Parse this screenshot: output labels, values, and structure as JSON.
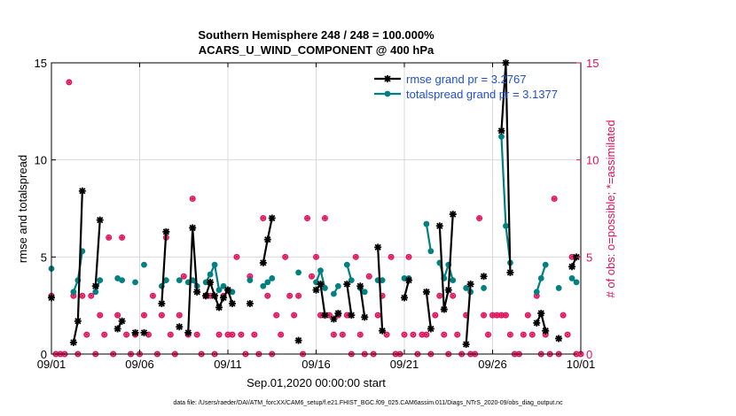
{
  "title_line1": "Southern Hemisphere 248 / 248 = 100.000%",
  "title_line2": "ACARS_U_WIND_COMPONENT @ 400 hPa",
  "footer": "data file: /Users/raeder/DAI/ATM_forcXX/CAM6_setup/f.e21.FHIST_BGC.f09_025.CAM6assim.011/Diags_NTrS_2020-09/obs_diag_output.nc",
  "colors": {
    "rmse": "#000000",
    "spread": "#008080",
    "obs": "#e0105a",
    "legend_text": "#1f4fd1"
  },
  "chart_data": {
    "type": "line",
    "xlabel": "Sep.01,2020 00:00:00 start",
    "ylabel": "rmse and totalspread",
    "ylabel_right": "# of obs: o=possible; *=assimilated",
    "x_unit": "days since Sep.01,2020",
    "xlim": [
      0,
      30
    ],
    "ylim": [
      0,
      15
    ],
    "ylim_right": [
      0,
      15
    ],
    "xticks": [
      {
        "value": 0,
        "label": "09/01"
      },
      {
        "value": 5,
        "label": "09/06"
      },
      {
        "value": 10,
        "label": "09/11"
      },
      {
        "value": 15,
        "label": "09/16"
      },
      {
        "value": 20,
        "label": "09/21"
      },
      {
        "value": 25,
        "label": "09/26"
      },
      {
        "value": 30,
        "label": "10/01"
      }
    ],
    "yticks": [
      0,
      5,
      10,
      15
    ],
    "yticks_right": [
      0,
      5,
      10,
      15
    ],
    "grid": true,
    "legend_position": "top-right",
    "series": [
      {
        "name": "rmse grand pr = 3.2767",
        "marker": "asterisk",
        "x": [
          0.0,
          0.25,
          null,
          1.25,
          1.5,
          1.75,
          null,
          2.5,
          2.75,
          null,
          3.75,
          4.0,
          null,
          4.75,
          null,
          5.25,
          null,
          6.25,
          6.5,
          null,
          7.25,
          null,
          7.75,
          8.0,
          8.25,
          null,
          8.75,
          9.0,
          9.25,
          9.5,
          9.75,
          10.0,
          10.25,
          null,
          11.25,
          null,
          12.0,
          12.25,
          12.5,
          12.75,
          null,
          14.0,
          null,
          15.0,
          15.25,
          15.5,
          15.75,
          null,
          16.0,
          16.25,
          null,
          16.75,
          17.0,
          null,
          17.5,
          17.75,
          null,
          18.5,
          18.75,
          null,
          20.0,
          20.25,
          null,
          21.25,
          21.5,
          null,
          22.0,
          22.25,
          22.5,
          22.75,
          null,
          23.5,
          23.75,
          null,
          24.5,
          null,
          25.5,
          25.75,
          26.0,
          null,
          27.5,
          27.75,
          28.0,
          null,
          28.75,
          null,
          29.5,
          29.75
        ],
        "y": [
          2.9,
          null,
          null,
          0.6,
          1.7,
          8.4,
          null,
          3.5,
          6.9,
          null,
          1.3,
          1.7,
          null,
          1.1,
          null,
          1.1,
          null,
          2.6,
          6.3,
          null,
          1.4,
          null,
          1.1,
          6.5,
          3.2,
          null,
          3.0,
          3.7,
          3.0,
          2.4,
          2.9,
          3.3,
          2.6,
          null,
          2.6,
          null,
          4.7,
          5.9,
          7.0,
          null,
          null,
          0.7,
          null,
          3.3,
          3.6,
          2.0,
          null,
          null,
          1.8,
          2.1,
          null,
          3.6,
          2.0,
          null,
          3.5,
          1.9,
          null,
          5.5,
          1.2,
          null,
          2.9,
          3.8,
          null,
          3.2,
          1.3,
          null,
          6.6,
          2.3,
          3.3,
          7.2,
          null,
          0.5,
          3.6,
          null,
          4.0,
          null,
          11.5,
          15.0,
          4.2,
          null,
          1.6,
          2.1,
          1.2,
          null,
          0.8,
          null,
          4.5,
          5.0
        ]
      },
      {
        "name": "totalspread grand pr = 3.1377",
        "marker": "dot",
        "x": [
          0.0,
          0.25,
          null,
          1.25,
          1.5,
          1.75,
          null,
          2.5,
          2.75,
          null,
          3.75,
          4.0,
          null,
          4.75,
          null,
          5.25,
          null,
          6.25,
          6.5,
          null,
          7.25,
          null,
          7.75,
          8.0,
          8.25,
          null,
          8.75,
          9.0,
          9.25,
          9.5,
          9.75,
          10.0,
          10.25,
          null,
          11.25,
          null,
          12.0,
          12.25,
          12.5,
          12.75,
          null,
          14.0,
          null,
          15.0,
          15.25,
          15.5,
          15.75,
          null,
          16.0,
          16.25,
          null,
          16.75,
          17.0,
          null,
          17.5,
          17.75,
          null,
          18.5,
          18.75,
          null,
          20.0,
          20.25,
          null,
          21.25,
          21.5,
          null,
          22.0,
          22.25,
          22.5,
          22.75,
          null,
          23.5,
          23.75,
          null,
          24.5,
          null,
          25.5,
          25.75,
          26.0,
          null,
          27.5,
          27.75,
          28.0,
          null,
          28.75,
          null,
          29.5,
          29.75
        ],
        "y": [
          4.4,
          null,
          null,
          3.2,
          3.8,
          5.3,
          null,
          3.2,
          3.8,
          null,
          3.9,
          3.8,
          null,
          3.7,
          null,
          4.6,
          null,
          3.5,
          3.8,
          null,
          3.8,
          null,
          3.7,
          3.8,
          3.5,
          null,
          3.7,
          4.1,
          4.6,
          3.3,
          3.5,
          3.3,
          3.2,
          null,
          3.8,
          null,
          3.5,
          3.7,
          3.9,
          null,
          null,
          4.2,
          null,
          3.7,
          4.3,
          3.4,
          null,
          null,
          3.1,
          3.5,
          null,
          4.6,
          3.8,
          null,
          3.4,
          3.2,
          null,
          3.8,
          3.8,
          null,
          3.9,
          3.9,
          null,
          6.7,
          5.3,
          null,
          4.7,
          3.9,
          4.6,
          3.8,
          null,
          3.4,
          3.2,
          null,
          3.4,
          null,
          11.2,
          6.6,
          4.7,
          null,
          3.2,
          3.9,
          4.6,
          null,
          3.4,
          null,
          3.9,
          3.7
        ]
      },
      {
        "name": "# of obs",
        "marker": "circle-star",
        "axis": "right",
        "x": [
          0.0,
          0.25,
          0.5,
          0.75,
          1.0,
          1.25,
          1.5,
          1.75,
          2.0,
          2.25,
          2.5,
          2.75,
          3.0,
          3.25,
          3.5,
          3.75,
          4.0,
          4.25,
          4.5,
          4.75,
          5.0,
          5.25,
          5.5,
          5.75,
          6.0,
          6.25,
          6.5,
          6.75,
          7.0,
          7.25,
          7.5,
          7.75,
          8.0,
          8.25,
          8.5,
          8.75,
          9.0,
          9.25,
          9.5,
          9.75,
          10.0,
          10.25,
          10.5,
          10.75,
          11.0,
          11.25,
          11.5,
          11.75,
          12.0,
          12.25,
          12.5,
          12.75,
          13.0,
          13.25,
          13.5,
          13.75,
          14.0,
          14.25,
          14.5,
          14.75,
          15.0,
          15.25,
          15.5,
          15.75,
          16.0,
          16.25,
          16.5,
          16.75,
          17.0,
          17.25,
          17.5,
          17.75,
          18.0,
          18.25,
          18.5,
          18.75,
          19.0,
          19.25,
          19.5,
          19.75,
          20.0,
          20.25,
          20.5,
          20.75,
          21.0,
          21.25,
          21.5,
          21.75,
          22.0,
          22.25,
          22.5,
          22.75,
          23.0,
          23.25,
          23.5,
          23.75,
          24.0,
          24.25,
          24.5,
          24.75,
          25.0,
          25.25,
          25.5,
          25.75,
          26.0,
          26.25,
          26.5,
          26.75,
          27.0,
          27.25,
          27.5,
          27.75,
          28.0,
          28.25,
          28.5,
          28.75,
          29.0,
          29.25,
          29.5,
          29.75,
          30.0
        ],
        "y": [
          3,
          0,
          0,
          0,
          14,
          3,
          0,
          3,
          1,
          3,
          0,
          2,
          1,
          6,
          0,
          2,
          6,
          1,
          0,
          1,
          0,
          2,
          1,
          3,
          0,
          2,
          6,
          1,
          0,
          2,
          4,
          1,
          8,
          1,
          0,
          3,
          3,
          0,
          1,
          3,
          1,
          1,
          5,
          1,
          0,
          4,
          1,
          0,
          7,
          3,
          0,
          2,
          1,
          5,
          3,
          2,
          3,
          0,
          7,
          4,
          5,
          2,
          7,
          2,
          1,
          2,
          1,
          2,
          0,
          5,
          1,
          0,
          4,
          0,
          2,
          3,
          1,
          5,
          0,
          0,
          1,
          5,
          1,
          0,
          1,
          1,
          0,
          2,
          3,
          1,
          0,
          3,
          1,
          0,
          2,
          0,
          0,
          7,
          2,
          1,
          2,
          2,
          2,
          2,
          1,
          0,
          0,
          1,
          2,
          1,
          3,
          0,
          1,
          0,
          8,
          0,
          2,
          1,
          5,
          0,
          0
        ]
      }
    ]
  }
}
